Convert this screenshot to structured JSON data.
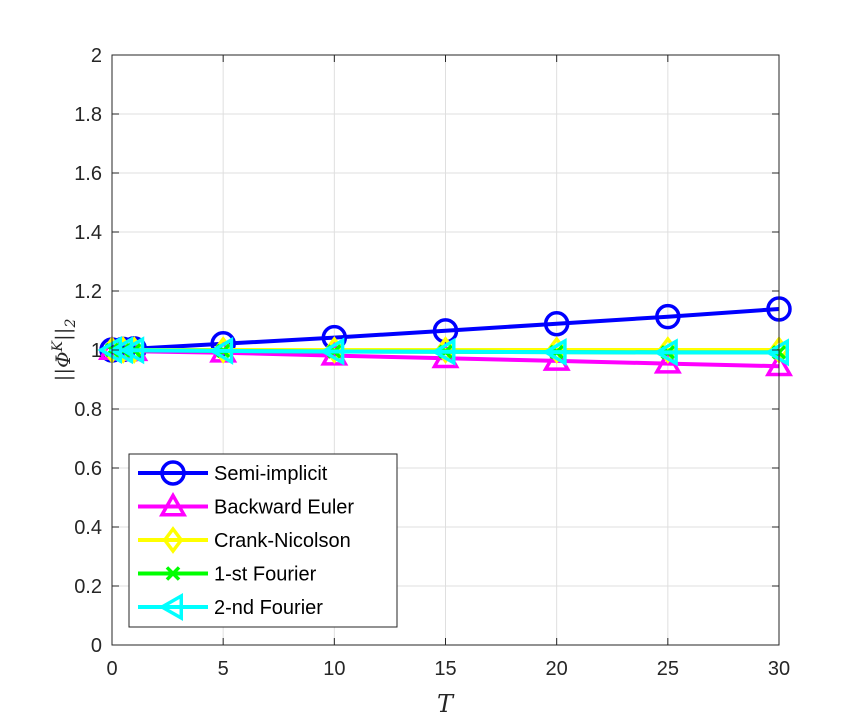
{
  "chart_data": {
    "type": "line",
    "title": "",
    "xlabel": "T",
    "ylabel": "||Φ^K||_2",
    "ylabel_parts": {
      "open": "||Φ",
      "sup": "K",
      "close": "||",
      "sub": "2"
    },
    "xlim": [
      0,
      30
    ],
    "ylim": [
      0,
      2
    ],
    "xticks": [
      0,
      5,
      10,
      15,
      20,
      25,
      30
    ],
    "yticks": [
      0,
      0.2,
      0.4,
      0.6,
      0.8,
      1,
      1.2,
      1.4,
      1.6,
      1.8,
      2
    ],
    "ytick_labels": [
      "0",
      "0.2",
      "0.4",
      "0.6",
      "0.8",
      "1",
      "1.2",
      "1.4",
      "1.6",
      "1.8",
      "2"
    ],
    "xtick_labels": [
      "0",
      "5",
      "10",
      "15",
      "20",
      "25",
      "30"
    ],
    "grid": true,
    "legend_position": "bottom-left",
    "x": [
      0,
      0.5,
      1,
      5,
      10,
      15,
      20,
      25,
      30
    ],
    "series": [
      {
        "name": "Semi-implicit",
        "color": "#0000ff",
        "marker": "circle",
        "values": [
          1.0,
          1.002,
          1.004,
          1.021,
          1.042,
          1.065,
          1.089,
          1.113,
          1.139
        ]
      },
      {
        "name": "Backward Euler",
        "color": "#ff00ff",
        "marker": "triangle-up",
        "values": [
          1.0,
          0.998,
          0.996,
          0.991,
          0.981,
          0.972,
          0.963,
          0.954,
          0.945
        ]
      },
      {
        "name": "Crank-Nicolson",
        "color": "#ffff00",
        "marker": "diamond",
        "values": [
          1.0,
          1.0,
          1.0,
          1.0,
          1.0,
          1.0,
          1.0,
          1.0,
          1.0
        ]
      },
      {
        "name": "1-st Fourier",
        "color": "#00ff00",
        "marker": "x",
        "values": [
          1.0,
          0.999,
          0.999,
          0.997,
          0.995,
          0.994,
          0.993,
          0.992,
          0.992
        ]
      },
      {
        "name": "2-nd Fourier",
        "color": "#00ffff",
        "marker": "triangle-left",
        "values": [
          1.0,
          0.999,
          0.999,
          0.997,
          0.995,
          0.994,
          0.993,
          0.992,
          0.992
        ]
      }
    ]
  }
}
